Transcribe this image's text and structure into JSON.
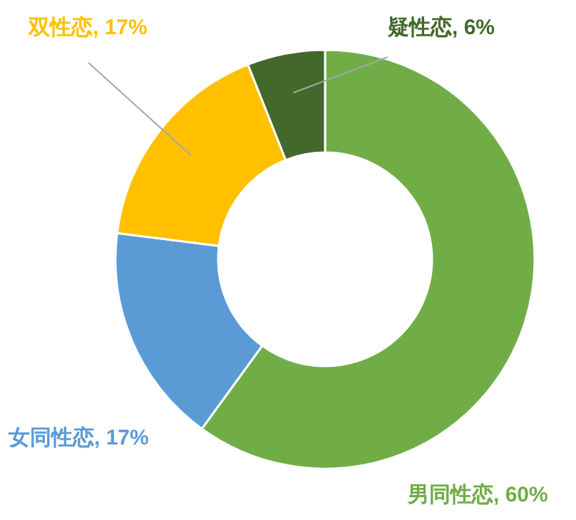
{
  "chart_data": {
    "type": "donut",
    "categories": [
      "男同性恋",
      "女同性恋",
      "双性恋",
      "疑性恋"
    ],
    "values": [
      60,
      17,
      17,
      6
    ],
    "value_labels": [
      "60%",
      "17%",
      "17%",
      "6%"
    ],
    "colors": [
      "#70ad47",
      "#5b9bd5",
      "#ffc000",
      "#43682b"
    ],
    "legend": false
  }
}
